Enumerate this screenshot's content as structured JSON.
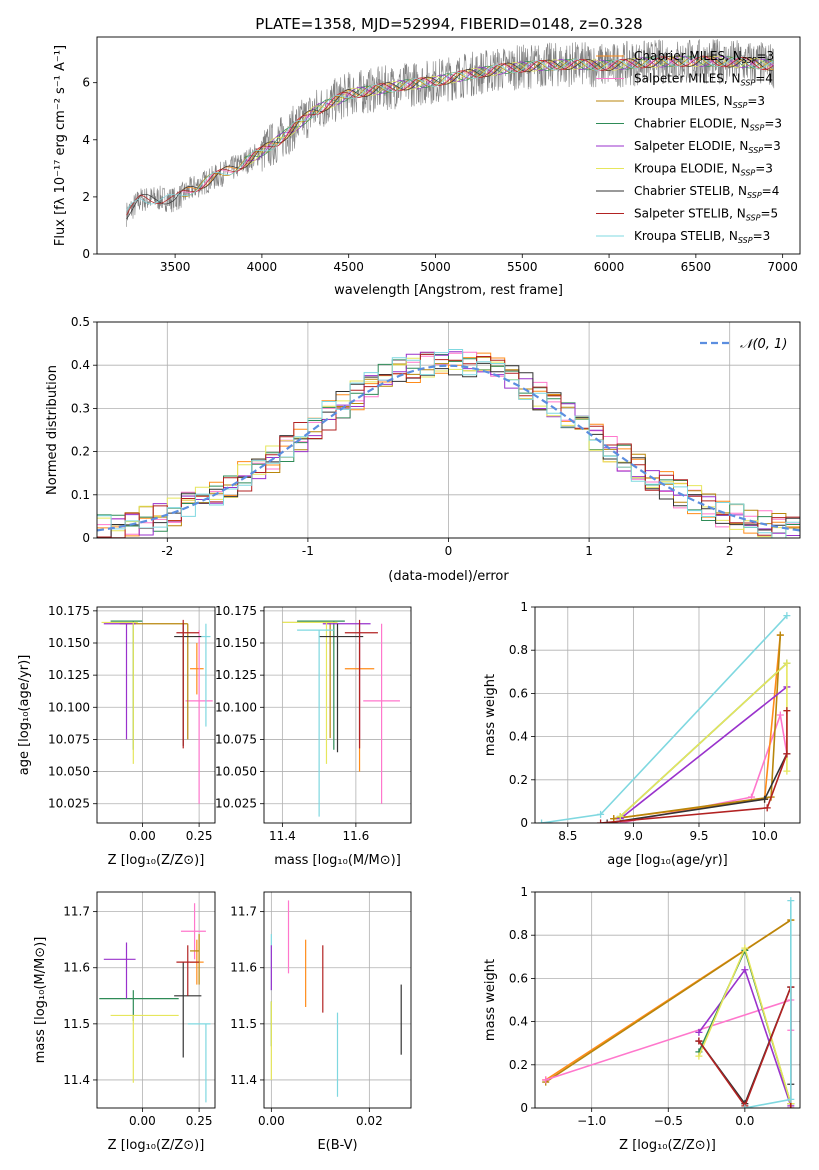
{
  "page": {
    "title": "PLATE=1358, MJD=52994, FIBERID=0148, z=0.328"
  },
  "colors": {
    "Chabrier MILES": "#ff8c1a",
    "Salpeter MILES": "#ff77cc",
    "Kroupa MILES": "#b8860b",
    "Chabrier ELODIE": "#2e8b57",
    "Salpeter ELODIE": "#9932cc",
    "Kroupa ELODIE": "#e6e65c",
    "Chabrier STELIB": "#333333",
    "Salpeter STELIB": "#b22222",
    "Kroupa STELIB": "#7fd8e0",
    "data": "#808080",
    "gaussian": "#5b8ee0"
  },
  "chart_data": [
    {
      "id": "spectrum",
      "type": "line",
      "xlabel": "wavelength [Angstrom, rest frame]",
      "ylabel": "Flux [fλ 10⁻¹⁷ erg cm⁻² s⁻¹ A⁻¹]",
      "xlim": [
        3050,
        7100
      ],
      "ylim": [
        0,
        7.6
      ],
      "xticks": [
        3500,
        4000,
        4500,
        5000,
        5500,
        6000,
        6500,
        7000
      ],
      "yticks": [
        0,
        2,
        4,
        6
      ],
      "legend_position": "top-right",
      "legend": [
        {
          "label": "Chabrier MILES, N",
          "sub": "SSP",
          "suffix": "=3"
        },
        {
          "label": "Salpeter MILES, N",
          "sub": "SSP",
          "suffix": "=4"
        },
        {
          "label": "Kroupa MILES, N",
          "sub": "SSP",
          "suffix": "=3"
        },
        {
          "label": "Chabrier ELODIE, N",
          "sub": "SSP",
          "suffix": "=3"
        },
        {
          "label": "Salpeter ELODIE, N",
          "sub": "SSP",
          "suffix": "=3"
        },
        {
          "label": "Kroupa ELODIE, N",
          "sub": "SSP",
          "suffix": "=3"
        },
        {
          "label": "Chabrier STELIB, N",
          "sub": "SSP",
          "suffix": "=4"
        },
        {
          "label": "Salpeter STELIB, N",
          "sub": "SSP",
          "suffix": "=5"
        },
        {
          "label": "Kroupa STELIB, N",
          "sub": "SSP",
          "suffix": "=3"
        }
      ],
      "continuum": {
        "x": [
          3220,
          3300,
          3400,
          3500,
          3600,
          3700,
          3800,
          3900,
          4000,
          4100,
          4200,
          4300,
          4400,
          4500,
          4600,
          4800,
          5000,
          5200,
          5400,
          5600,
          5800,
          6000,
          6200,
          6400,
          6600,
          6800,
          6950
        ],
        "y": [
          1.4,
          1.9,
          1.95,
          1.9,
          2.3,
          2.6,
          2.9,
          3.2,
          3.6,
          4.0,
          4.5,
          5.0,
          5.3,
          5.6,
          5.7,
          5.9,
          6.05,
          6.3,
          6.5,
          6.6,
          6.65,
          6.6,
          6.7,
          6.75,
          6.75,
          6.7,
          6.6
        ]
      }
    },
    {
      "id": "residuals",
      "type": "histogram",
      "xlabel": "(data-model)/error",
      "ylabel": "Normed distribution",
      "xlim": [
        -2.5,
        2.5
      ],
      "ylim": [
        0,
        0.5
      ],
      "xticks": [
        -2,
        -1,
        0,
        1,
        2
      ],
      "yticks": [
        0.0,
        0.1,
        0.2,
        0.3,
        0.4,
        0.5
      ],
      "legend_position": "top-right",
      "legend": [
        {
          "label": "𝒩(0, 1)"
        }
      ],
      "bin_width": 0.1
    },
    {
      "id": "age_vs_Z",
      "type": "scatter",
      "xlabel": "Z [log₁₀(Z/Z⊙)]",
      "ylabel": "age  [log₁₀(age/yr)]",
      "xlim": [
        -0.2,
        0.32
      ],
      "ylim": [
        10.01,
        10.178
      ],
      "xticks": [
        0.0,
        0.25
      ],
      "xticklabels": [
        "0.00",
        "0.25"
      ],
      "yticks": [
        10.025,
        10.05,
        10.075,
        10.1,
        10.125,
        10.15,
        10.175
      ],
      "yticklabels": [
        "10.025",
        "10.050",
        "10.075",
        "10.100",
        "10.125",
        "10.150",
        "10.175"
      ],
      "points": [
        {
          "model": "Chabrier MILES",
          "x": 0.24,
          "y": 10.13,
          "xerr": [
            0.03,
            0.03
          ],
          "yerr": [
            0.02,
            0.02
          ]
        },
        {
          "model": "Salpeter MILES",
          "x": 0.25,
          "y": 10.105,
          "xerr": [
            0.06,
            0.06
          ],
          "yerr": [
            0.08,
            0.055
          ]
        },
        {
          "model": "Kroupa MILES",
          "x": 0.2,
          "y": 10.165,
          "xerr": [
            0.3,
            0.0
          ],
          "yerr": [
            0.09,
            0.0
          ]
        },
        {
          "model": "Chabrier ELODIE",
          "x": -0.04,
          "y": 10.167,
          "xerr": [
            0.1,
            0.04
          ],
          "yerr": [
            0.1,
            0.0
          ]
        },
        {
          "model": "Salpeter ELODIE",
          "x": -0.07,
          "y": 10.165,
          "xerr": [
            0.1,
            0.04
          ],
          "yerr": [
            0.09,
            0.0
          ]
        },
        {
          "model": "Kroupa ELODIE",
          "x": -0.04,
          "y": 10.166,
          "xerr": [
            0.14,
            0.02
          ],
          "yerr": [
            0.11,
            0.0
          ]
        },
        {
          "model": "Chabrier STELIB",
          "x": 0.18,
          "y": 10.155,
          "xerr": [
            0.04,
            0.08
          ],
          "yerr": [
            0.085,
            0.01
          ]
        },
        {
          "model": "Salpeter STELIB",
          "x": 0.18,
          "y": 10.158,
          "xerr": [
            0.03,
            0.07
          ],
          "yerr": [
            0.09,
            0.01
          ]
        },
        {
          "model": "Kroupa STELIB",
          "x": 0.28,
          "y": 10.155,
          "xerr": [
            0.02,
            0.02
          ],
          "yerr": [
            0.07,
            0.01
          ]
        }
      ]
    },
    {
      "id": "age_vs_mass",
      "type": "scatter",
      "xlabel": "mass [log₁₀(M/M⊙)]",
      "ylabel": "",
      "xlim": [
        11.35,
        11.75
      ],
      "ylim": [
        10.01,
        10.178
      ],
      "xticks": [
        11.4,
        11.6
      ],
      "xticklabels": [
        "11.4",
        "11.6"
      ],
      "yticks": [
        10.025,
        10.05,
        10.075,
        10.1,
        10.125,
        10.15,
        10.175
      ],
      "yticklabels": [
        "10.025",
        "10.050",
        "10.075",
        "10.100",
        "10.125",
        "10.150",
        "10.175"
      ],
      "points": [
        {
          "model": "Chabrier MILES",
          "x": 11.61,
          "y": 10.13,
          "xerr": [
            0.04,
            0.04
          ],
          "yerr": [
            0.08,
            0.02
          ]
        },
        {
          "model": "Salpeter MILES",
          "x": 11.67,
          "y": 10.105,
          "xerr": [
            0.05,
            0.05
          ],
          "yerr": [
            0.08,
            0.06
          ]
        },
        {
          "model": "Kroupa MILES",
          "x": 11.53,
          "y": 10.166,
          "xerr": [
            0.13,
            0.0
          ],
          "yerr": [
            0.09,
            0.0
          ]
        },
        {
          "model": "Chabrier ELODIE",
          "x": 11.54,
          "y": 10.167,
          "xerr": [
            0.1,
            0.03
          ],
          "yerr": [
            0.1,
            0.0
          ]
        },
        {
          "model": "Salpeter ELODIE",
          "x": 11.61,
          "y": 10.165,
          "xerr": [
            0.1,
            0.03
          ],
          "yerr": [
            0.09,
            0.0
          ]
        },
        {
          "model": "Kroupa ELODIE",
          "x": 11.52,
          "y": 10.166,
          "xerr": [
            0.12,
            0.03
          ],
          "yerr": [
            0.11,
            0.0
          ]
        },
        {
          "model": "Chabrier STELIB",
          "x": 11.55,
          "y": 10.155,
          "xerr": [
            0.05,
            0.07
          ],
          "yerr": [
            0.09,
            0.01
          ]
        },
        {
          "model": "Salpeter STELIB",
          "x": 11.61,
          "y": 10.158,
          "xerr": [
            0.04,
            0.05
          ],
          "yerr": [
            0.09,
            0.01
          ]
        },
        {
          "model": "Kroupa STELIB",
          "x": 11.5,
          "y": 10.16,
          "xerr": [
            0.06,
            0.04
          ],
          "yerr": [
            0.145,
            0.0
          ]
        }
      ]
    },
    {
      "id": "massweight_vs_age",
      "type": "line",
      "xlabel": "age  [log₁₀(age/yr)]",
      "ylabel": "mass weight",
      "xlim": [
        8.25,
        10.27
      ],
      "ylim": [
        0,
        1.0
      ],
      "xticks": [
        8.5,
        9.0,
        9.5,
        10.0
      ],
      "xticklabels": [
        "8.5",
        "9.0",
        "9.5",
        "10.0"
      ],
      "yticks": [
        0.0,
        0.2,
        0.4,
        0.6,
        0.8,
        1.0
      ],
      "series": [
        {
          "model": "Kroupa STELIB",
          "x": [
            8.3,
            8.75,
            10.17
          ],
          "y": [
            0.0,
            0.04,
            0.96
          ]
        },
        {
          "model": "Salpeter MILES",
          "x": [
            8.9,
            9.9,
            10.12,
            10.17
          ],
          "y": [
            0.0,
            0.12,
            0.5,
            0.32
          ]
        },
        {
          "model": "Chabrier MILES",
          "x": [
            8.85,
            10.0,
            10.12
          ],
          "y": [
            0.02,
            0.11,
            0.87
          ]
        },
        {
          "model": "Kroupa MILES",
          "x": [
            8.85,
            10.05,
            10.12
          ],
          "y": [
            0.02,
            0.12,
            0.87
          ]
        },
        {
          "model": "Salpeter ELODIE",
          "x": [
            8.9,
            10.17
          ],
          "y": [
            0.02,
            0.63
          ]
        },
        {
          "model": "Chabrier ELODIE",
          "x": [
            8.9,
            10.17
          ],
          "y": [
            0.03,
            0.74
          ]
        },
        {
          "model": "Kroupa ELODIE",
          "x": [
            8.9,
            10.17,
            10.17
          ],
          "y": [
            0.03,
            0.74,
            0.24
          ]
        },
        {
          "model": "Chabrier STELIB",
          "x": [
            8.8,
            10.0,
            10.17
          ],
          "y": [
            0.0,
            0.11,
            0.32
          ]
        },
        {
          "model": "Salpeter STELIB",
          "x": [
            8.75,
            10.02,
            10.17,
            10.17
          ],
          "y": [
            0.0,
            0.07,
            0.32,
            0.52
          ]
        }
      ]
    },
    {
      "id": "mass_vs_Z",
      "type": "scatter",
      "xlabel": "Z [log₁₀(Z/Z⊙)]",
      "ylabel": "mass [log₁₀(M/M⊙)]",
      "xlim": [
        -0.2,
        0.32
      ],
      "ylim": [
        11.35,
        11.735
      ],
      "xticks": [
        0.0,
        0.25
      ],
      "xticklabels": [
        "0.00",
        "0.25"
      ],
      "yticks": [
        11.4,
        11.5,
        11.6,
        11.7
      ],
      "yticklabels": [
        "11.4",
        "11.5",
        "11.6",
        "11.7"
      ],
      "points": [
        {
          "model": "Chabrier MILES",
          "x": 0.24,
          "y": 11.61,
          "xerr": [
            0.03,
            0.03
          ],
          "yerr": [
            0.04,
            0.04
          ]
        },
        {
          "model": "Salpeter MILES",
          "x": 0.23,
          "y": 11.665,
          "xerr": [
            0.06,
            0.05
          ],
          "yerr": [
            0.05,
            0.05
          ]
        },
        {
          "model": "Kroupa MILES",
          "x": 0.25,
          "y": 11.63,
          "xerr": [
            0.04,
            0.0
          ],
          "yerr": [
            0.06,
            0.03
          ]
        },
        {
          "model": "Chabrier ELODIE",
          "x": -0.04,
          "y": 11.545,
          "xerr": [
            0.15,
            0.2
          ],
          "yerr": [
            0.04,
            0.015
          ]
        },
        {
          "model": "Salpeter ELODIE",
          "x": -0.07,
          "y": 11.615,
          "xerr": [
            0.1,
            0.04
          ],
          "yerr": [
            0.07,
            0.03
          ]
        },
        {
          "model": "Kroupa ELODIE",
          "x": -0.04,
          "y": 11.515,
          "xerr": [
            0.1,
            0.2
          ],
          "yerr": [
            0.12,
            0.0
          ]
        },
        {
          "model": "Chabrier STELIB",
          "x": 0.18,
          "y": 11.55,
          "xerr": [
            0.04,
            0.08
          ],
          "yerr": [
            0.11,
            0.06
          ]
        },
        {
          "model": "Salpeter STELIB",
          "x": 0.2,
          "y": 11.61,
          "xerr": [
            0.05,
            0.05
          ],
          "yerr": [
            0.06,
            0.03
          ]
        },
        {
          "model": "Kroupa STELIB",
          "x": 0.28,
          "y": 11.5,
          "xerr": [
            0.08,
            0.02
          ],
          "yerr": [
            0.14,
            0.0
          ]
        }
      ]
    },
    {
      "id": "mass_vs_ebv",
      "type": "scatter",
      "xlabel": "E(B-V)",
      "ylabel": "",
      "xlim": [
        -0.0015,
        0.0285
      ],
      "ylim": [
        11.35,
        11.735
      ],
      "xticks": [
        0.0,
        0.02
      ],
      "xticklabels": [
        "0.00",
        "0.02"
      ],
      "yticks": [
        11.4,
        11.5,
        11.6,
        11.7
      ],
      "yticklabels": [
        "11.4",
        "11.5",
        "11.6",
        "11.7"
      ],
      "points": [
        {
          "model": "Kroupa STELIB",
          "x": 0.0,
          "y": 11.61,
          "xerr": [
            0,
            0
          ],
          "yerr": [
            0.05,
            0.05
          ]
        },
        {
          "model": "Salpeter ELODIE",
          "x": 0.0,
          "y": 11.6,
          "xerr": [
            0,
            0
          ],
          "yerr": [
            0.04,
            0.04
          ]
        },
        {
          "model": "Chabrier ELODIE",
          "x": 0.0,
          "y": 11.5,
          "xerr": [
            0,
            0
          ],
          "yerr": [
            0.04,
            0.04
          ]
        },
        {
          "model": "Kroupa ELODIE",
          "x": 0.0,
          "y": 11.45,
          "xerr": [
            0,
            0
          ],
          "yerr": [
            0.05,
            0.09
          ]
        },
        {
          "model": "Salpeter MILES",
          "x": 0.0035,
          "y": 11.65,
          "xerr": [
            0,
            0
          ],
          "yerr": [
            0.06,
            0.07
          ]
        },
        {
          "model": "Chabrier MILES",
          "x": 0.007,
          "y": 11.59,
          "xerr": [
            0,
            0
          ],
          "yerr": [
            0.06,
            0.06
          ]
        },
        {
          "model": "Salpeter STELIB",
          "x": 0.0105,
          "y": 11.58,
          "xerr": [
            0,
            0
          ],
          "yerr": [
            0.06,
            0.06
          ]
        },
        {
          "model": "Kroupa STELIB",
          "x": 0.0135,
          "y": 11.44,
          "xerr": [
            0,
            0
          ],
          "yerr": [
            0.07,
            0.08
          ]
        },
        {
          "model": "Chabrier STELIB",
          "x": 0.0265,
          "y": 11.505,
          "xerr": [
            0,
            0
          ],
          "yerr": [
            0.06,
            0.065
          ]
        }
      ]
    },
    {
      "id": "massweight_vs_Z",
      "type": "line",
      "xlabel": "Z [log₁₀(Z/Z⊙)]",
      "ylabel": "mass weight",
      "xlim": [
        -1.37,
        0.36
      ],
      "ylim": [
        0,
        1.0
      ],
      "xticks": [
        -1.0,
        -0.5,
        0.0
      ],
      "xticklabels": [
        "−1.0",
        "−0.5",
        "0.0"
      ],
      "yticks": [
        0.0,
        0.2,
        0.4,
        0.6,
        0.8,
        1.0
      ],
      "series": [
        {
          "model": "Chabrier MILES",
          "x": [
            -1.3,
            0.3
          ],
          "y": [
            0.13,
            0.87
          ]
        },
        {
          "model": "Kroupa MILES",
          "x": [
            -1.3,
            0.3
          ],
          "y": [
            0.12,
            0.87
          ]
        },
        {
          "model": "Salpeter MILES",
          "x": [
            -1.3,
            0.3,
            0.3
          ],
          "y": [
            0.13,
            0.5,
            0.36
          ]
        },
        {
          "model": "Salpeter ELODIE",
          "x": [
            -0.3,
            0.0,
            0.3
          ],
          "y": [
            0.35,
            0.64,
            0.01
          ]
        },
        {
          "model": "Chabrier ELODIE",
          "x": [
            -0.3,
            0.0,
            0.3
          ],
          "y": [
            0.26,
            0.73,
            0.02
          ]
        },
        {
          "model": "Kroupa ELODIE",
          "x": [
            -0.3,
            0.0,
            0.3
          ],
          "y": [
            0.24,
            0.74,
            0.02
          ]
        },
        {
          "model": "Chabrier STELIB",
          "x": [
            -0.3,
            0.0,
            0.3,
            0.3
          ],
          "y": [
            0.31,
            0.02,
            0.56,
            0.11
          ]
        },
        {
          "model": "Salpeter STELIB",
          "x": [
            -0.3,
            0.0,
            0.3,
            0.3
          ],
          "y": [
            0.31,
            0.01,
            0.56,
            0.0
          ]
        },
        {
          "model": "Kroupa STELIB",
          "x": [
            0.0,
            0.3,
            0.3
          ],
          "y": [
            0.0,
            0.04,
            0.96
          ]
        }
      ]
    }
  ]
}
